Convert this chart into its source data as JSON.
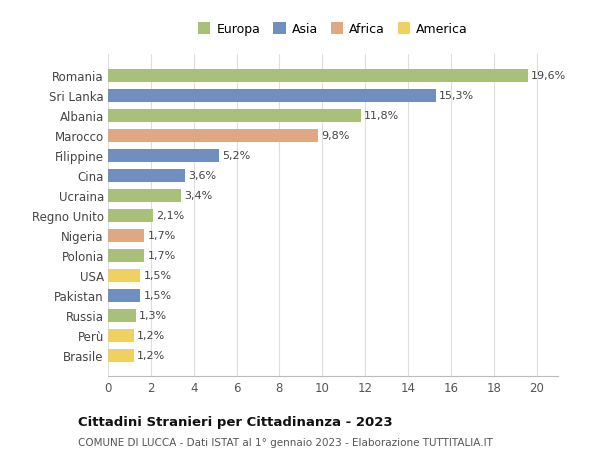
{
  "categories": [
    "Brasile",
    "Perù",
    "Russia",
    "Pakistan",
    "USA",
    "Polonia",
    "Nigeria",
    "Regno Unito",
    "Ucraina",
    "Cina",
    "Filippine",
    "Marocco",
    "Albania",
    "Sri Lanka",
    "Romania"
  ],
  "values": [
    1.2,
    1.2,
    1.3,
    1.5,
    1.5,
    1.7,
    1.7,
    2.1,
    3.4,
    3.6,
    5.2,
    9.8,
    11.8,
    15.3,
    19.6
  ],
  "labels": [
    "1,2%",
    "1,2%",
    "1,3%",
    "1,5%",
    "1,5%",
    "1,7%",
    "1,7%",
    "2,1%",
    "3,4%",
    "3,6%",
    "5,2%",
    "9,8%",
    "11,8%",
    "15,3%",
    "19,6%"
  ],
  "continent": [
    "America",
    "America",
    "Europa",
    "Asia",
    "America",
    "Europa",
    "Africa",
    "Europa",
    "Europa",
    "Asia",
    "Asia",
    "Africa",
    "Europa",
    "Asia",
    "Europa"
  ],
  "colors": {
    "Europa": "#a8c07a",
    "Asia": "#6e8fbf",
    "Africa": "#e0a882",
    "America": "#f0d060"
  },
  "legend_labels": [
    "Europa",
    "Asia",
    "Africa",
    "America"
  ],
  "legend_colors": [
    "#a8c07a",
    "#6e8fbf",
    "#e0a882",
    "#f0d060"
  ],
  "title": "Cittadini Stranieri per Cittadinanza - 2023",
  "subtitle": "COMUNE DI LUCCA - Dati ISTAT al 1° gennaio 2023 - Elaborazione TUTTITALIA.IT",
  "xlim": [
    0,
    21
  ],
  "xticks": [
    0,
    2,
    4,
    6,
    8,
    10,
    12,
    14,
    16,
    18,
    20
  ],
  "background_color": "#ffffff",
  "grid_color": "#dddddd"
}
